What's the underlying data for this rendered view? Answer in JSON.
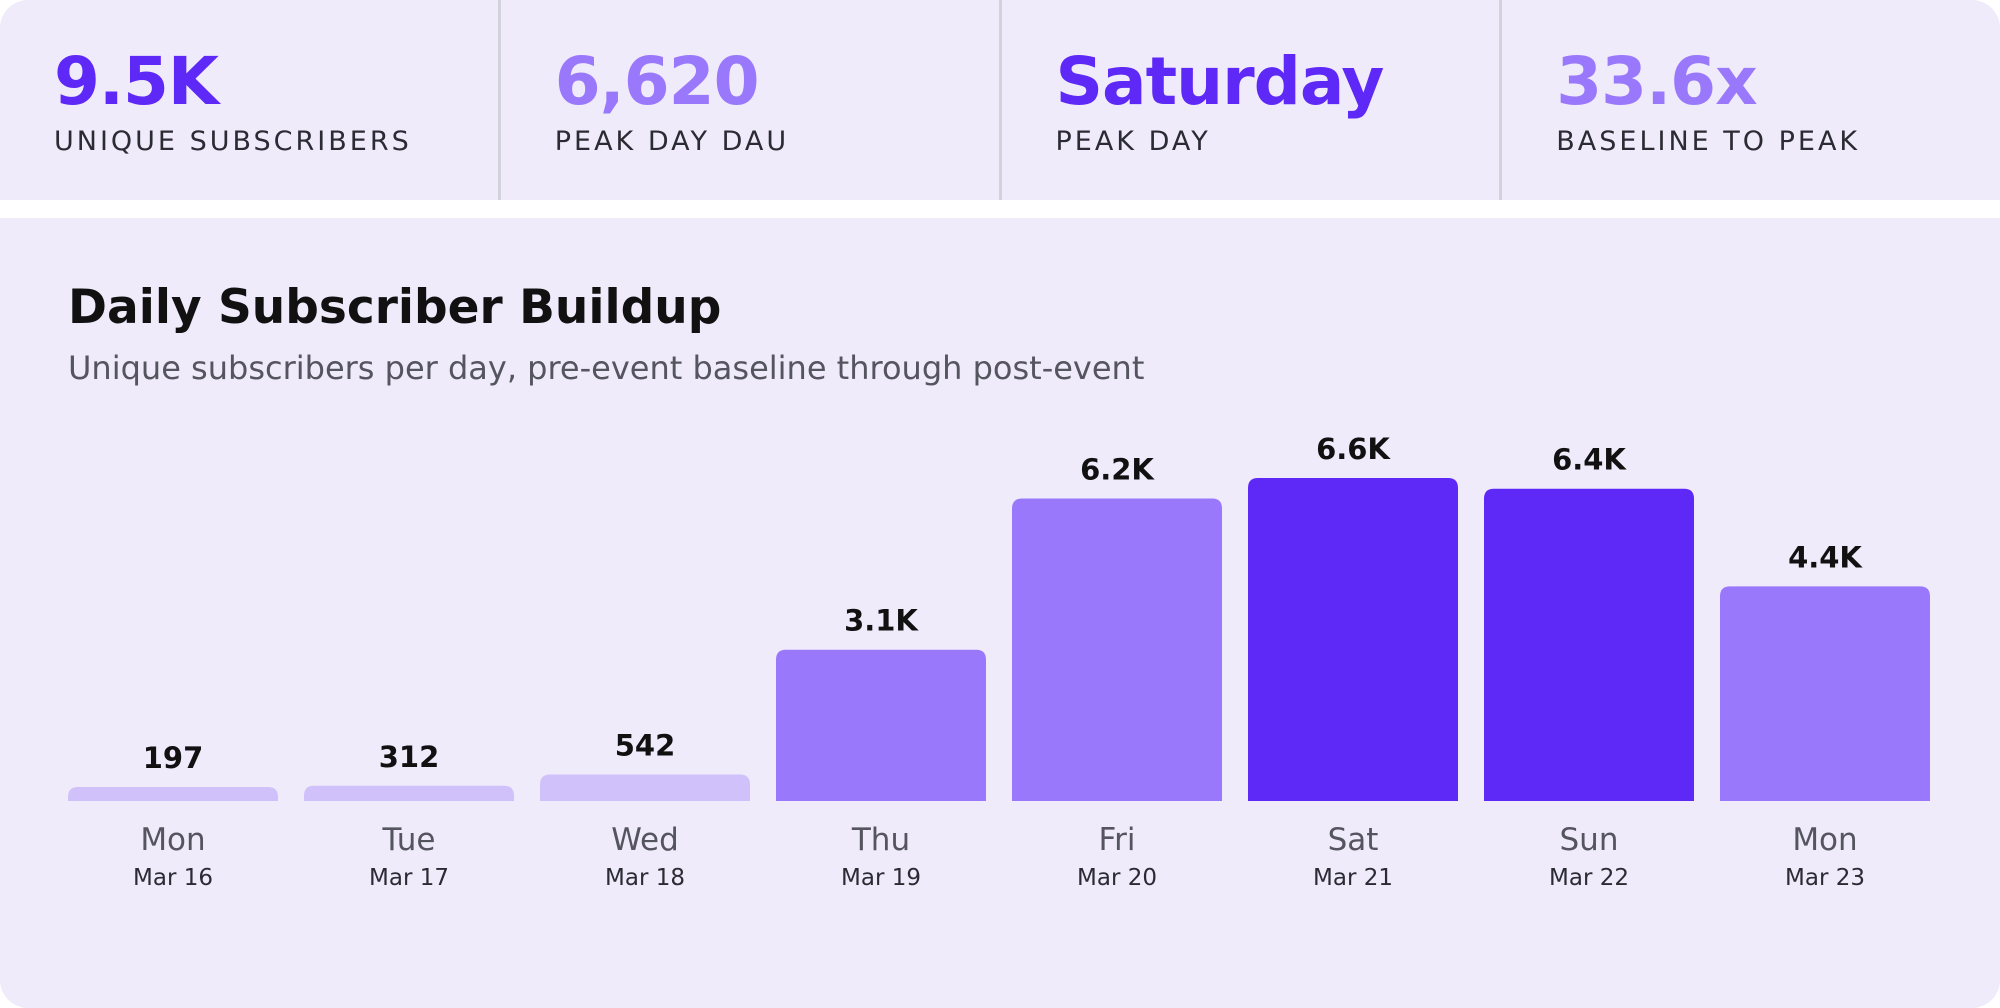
{
  "stats": [
    {
      "value": "9.5K",
      "label": "UNIQUE SUBSCRIBERS",
      "color": "#5e28f7"
    },
    {
      "value": "6,620",
      "label": "PEAK DAY DAU",
      "color": "#9a78fb"
    },
    {
      "value": "Saturday",
      "label": "PEAK DAY",
      "color": "#5e28f7"
    },
    {
      "value": "33.6x",
      "label": "BASELINE TO PEAK",
      "color": "#9a78fb"
    }
  ],
  "chart_data": {
    "type": "bar",
    "title": "Daily Subscriber Buildup",
    "subtitle": "Unique subscribers per day, pre-event baseline through post-event",
    "categories": [
      "Mon",
      "Tue",
      "Wed",
      "Thu",
      "Fri",
      "Sat",
      "Sun",
      "Mon"
    ],
    "dates": [
      "Mar 16",
      "Mar 17",
      "Mar 18",
      "Mar 19",
      "Mar 20",
      "Mar 21",
      "Mar 22",
      "Mar 23"
    ],
    "values": [
      197,
      312,
      542,
      3100,
      6200,
      6620,
      6400,
      4400
    ],
    "value_labels": [
      "197",
      "312",
      "542",
      "3.1K",
      "6.2K",
      "6.6K",
      "6.4K",
      "4.4K"
    ],
    "bar_colors": [
      "#d1c1fb",
      "#d1c1fb",
      "#d1c1fb",
      "#9a78fb",
      "#9a78fb",
      "#5e28f7",
      "#5e28f7",
      "#9a78fb"
    ],
    "ylim": [
      0,
      6620
    ],
    "grid": false,
    "legend": "none"
  }
}
